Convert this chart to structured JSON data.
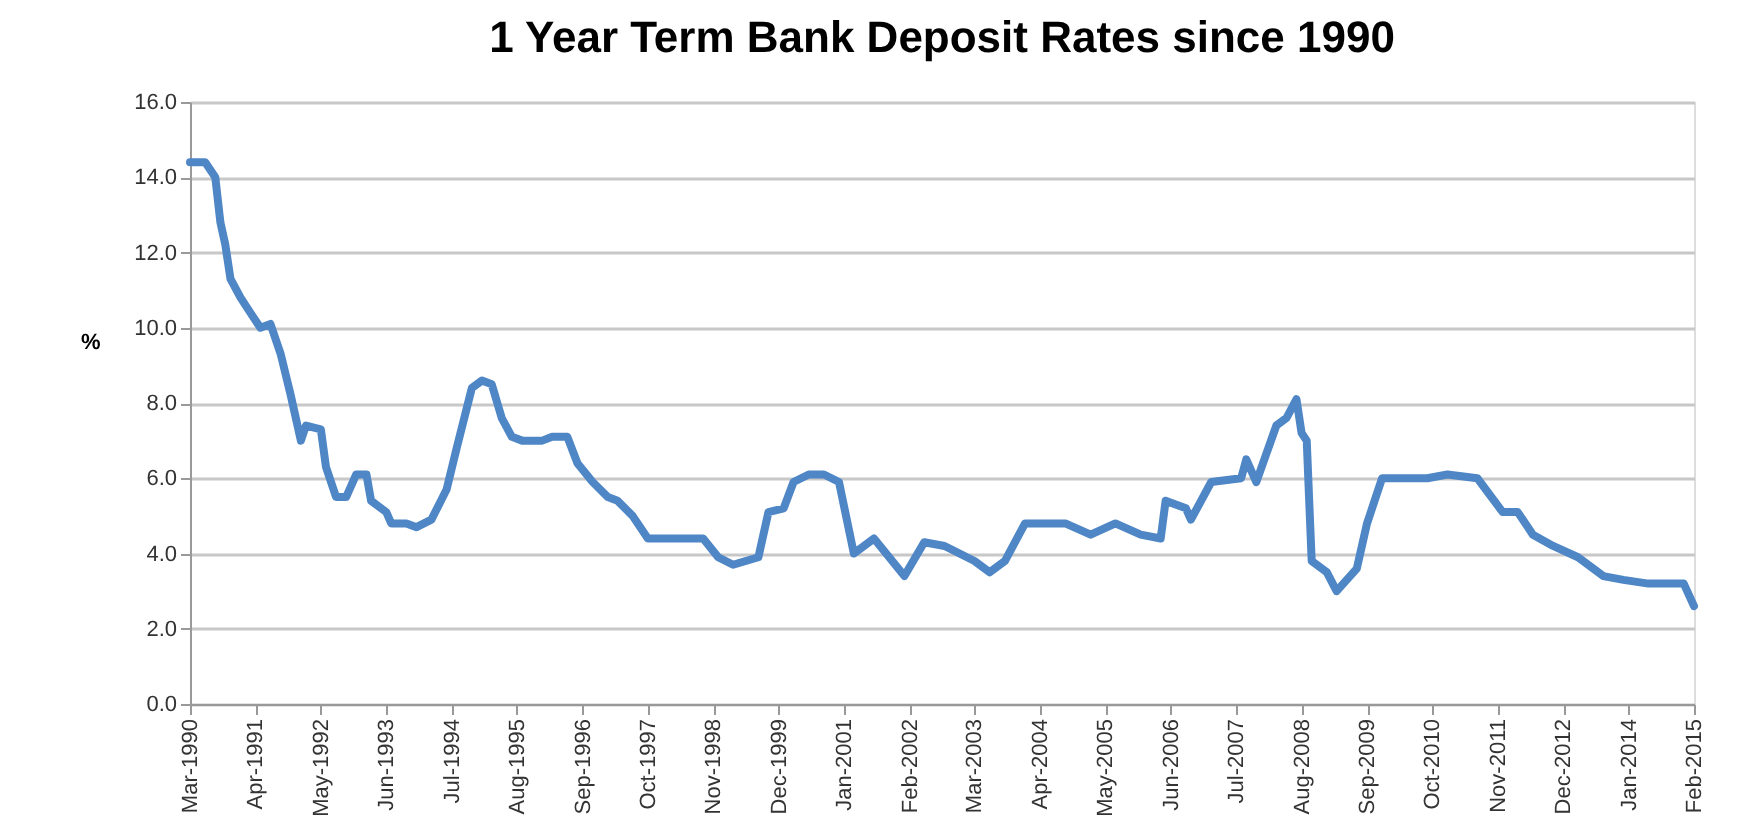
{
  "chart_data": {
    "type": "line",
    "title": "1 Year Term Bank Deposit Rates since 1990",
    "ylabel": "%",
    "x": [
      "1990-03",
      "1990-04",
      "1990-06",
      "1990-08",
      "1990-09",
      "1990-10",
      "1990-11",
      "1991-01",
      "1991-03",
      "1991-05",
      "1991-07",
      "1991-09",
      "1991-11",
      "1992-01",
      "1992-02",
      "1992-05",
      "1992-06",
      "1992-08",
      "1992-10",
      "1992-12",
      "1993-02",
      "1993-03",
      "1993-06",
      "1993-07",
      "1993-10",
      "1993-12",
      "1994-03",
      "1994-06",
      "1994-08",
      "1994-11",
      "1995-01",
      "1995-03",
      "1995-05",
      "1995-07",
      "1995-09",
      "1996-01",
      "1996-03",
      "1996-06",
      "1996-08",
      "1996-11",
      "1997-02",
      "1997-04",
      "1997-07",
      "1997-10",
      "1998-04",
      "1998-09",
      "1998-12",
      "1999-03",
      "1999-08",
      "1999-10",
      "2000-01",
      "2000-03",
      "2000-06",
      "2000-09",
      "2000-12",
      "2001-03",
      "2001-07",
      "2002-01",
      "2002-05",
      "2002-09",
      "2003-03",
      "2003-06",
      "2003-09",
      "2004-01",
      "2004-09",
      "2005-02",
      "2005-07",
      "2005-12",
      "2006-04",
      "2006-05",
      "2006-09",
      "2006-10",
      "2007-02",
      "2007-08",
      "2007-09",
      "2007-11",
      "2008-03",
      "2008-05",
      "2008-07",
      "2008-08",
      "2008-09",
      "2008-10",
      "2009-01",
      "2009-03",
      "2009-07",
      "2009-09",
      "2009-12",
      "2010-04",
      "2010-09",
      "2011-01",
      "2011-07",
      "2011-12",
      "2012-03",
      "2012-06",
      "2012-10",
      "2013-03",
      "2013-08",
      "2013-12",
      "2014-05",
      "2014-12",
      "2015-02"
    ],
    "series": [
      {
        "color": "#4f86c6",
        "values": [
          14.4,
          14.4,
          14.4,
          14.0,
          12.8,
          12.2,
          11.3,
          10.8,
          10.4,
          10.0,
          10.1,
          9.3,
          8.2,
          7.0,
          7.4,
          7.3,
          6.3,
          5.5,
          5.5,
          6.1,
          6.1,
          5.4,
          5.1,
          4.8,
          4.8,
          4.7,
          4.9,
          5.7,
          6.8,
          8.4,
          8.6,
          8.5,
          7.6,
          7.1,
          7.0,
          7.0,
          7.1,
          7.1,
          6.4,
          5.9,
          5.5,
          5.4,
          5.0,
          4.4,
          4.4,
          4.4,
          3.9,
          3.7,
          3.9,
          5.1,
          5.2,
          5.9,
          6.1,
          6.1,
          5.9,
          4.0,
          4.4,
          3.4,
          4.3,
          4.2,
          3.8,
          3.5,
          3.8,
          4.8,
          4.8,
          4.5,
          4.8,
          4.5,
          4.4,
          5.4,
          5.2,
          4.9,
          5.9,
          6.0,
          6.5,
          5.9,
          7.4,
          7.6,
          8.1,
          7.2,
          7.0,
          3.8,
          3.5,
          3.0,
          3.6,
          4.8,
          6.0,
          6.0,
          6.0,
          6.1,
          6.0,
          5.1,
          5.1,
          4.5,
          4.2,
          3.9,
          3.4,
          3.3,
          3.2,
          3.2,
          2.6
        ]
      }
    ],
    "xlim": [
      "1990-03",
      "2015-02"
    ],
    "xticks": [
      {
        "value": "1990-03",
        "label": "Mar-1990"
      },
      {
        "value": "1991-04",
        "label": "Apr-1991"
      },
      {
        "value": "1992-05",
        "label": "May-1992"
      },
      {
        "value": "1993-06",
        "label": "Jun-1993"
      },
      {
        "value": "1994-07",
        "label": "Jul-1994"
      },
      {
        "value": "1995-08",
        "label": "Aug-1995"
      },
      {
        "value": "1996-09",
        "label": "Sep-1996"
      },
      {
        "value": "1997-10",
        "label": "Oct-1997"
      },
      {
        "value": "1998-11",
        "label": "Nov-1998"
      },
      {
        "value": "1999-12",
        "label": "Dec-1999"
      },
      {
        "value": "2001-01",
        "label": "Jan-2001"
      },
      {
        "value": "2002-02",
        "label": "Feb-2002"
      },
      {
        "value": "2003-03",
        "label": "Mar-2003"
      },
      {
        "value": "2004-04",
        "label": "Apr-2004"
      },
      {
        "value": "2005-05",
        "label": "May-2005"
      },
      {
        "value": "2006-06",
        "label": "Jun-2006"
      },
      {
        "value": "2007-07",
        "label": "Jul-2007"
      },
      {
        "value": "2008-08",
        "label": "Aug-2008"
      },
      {
        "value": "2009-09",
        "label": "Sep-2009"
      },
      {
        "value": "2010-10",
        "label": "Oct-2010"
      },
      {
        "value": "2011-11",
        "label": "Nov-2011"
      },
      {
        "value": "2012-12",
        "label": "Dec-2012"
      },
      {
        "value": "2014-01",
        "label": "Jan-2014"
      },
      {
        "value": "2015-02",
        "label": "Feb-2015"
      }
    ],
    "ylim": [
      0,
      16
    ],
    "yticks": [
      {
        "value": 0,
        "label": "0.0"
      },
      {
        "value": 2,
        "label": "2.0"
      },
      {
        "value": 4,
        "label": "4.0"
      },
      {
        "value": 6,
        "label": "6.0"
      },
      {
        "value": 8,
        "label": "8.0"
      },
      {
        "value": 10,
        "label": "10.0"
      },
      {
        "value": 12,
        "label": "12.0"
      },
      {
        "value": 14,
        "label": "14.0"
      },
      {
        "value": 16,
        "label": "16.0"
      }
    ],
    "grid": "y",
    "marker": "none",
    "line_style": "solid"
  }
}
